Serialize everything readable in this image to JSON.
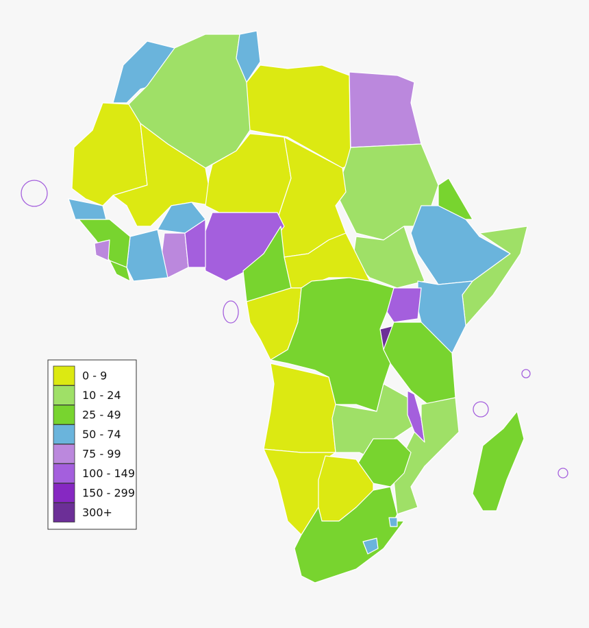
{
  "legend": {
    "items": [
      {
        "label": "0 - 9",
        "color": "#dce912"
      },
      {
        "label": "10 - 24",
        "color": "#9fe067"
      },
      {
        "label": "25 - 49",
        "color": "#78d42f"
      },
      {
        "label": "50 - 74",
        "color": "#6ab4dc"
      },
      {
        "label": "75 - 99",
        "color": "#bb88dd"
      },
      {
        "label": "100 - 149",
        "color": "#a45fdd"
      },
      {
        "label": "150 - 299",
        "color": "#8628c2"
      },
      {
        "label": "300+",
        "color": "#6c2f97"
      }
    ]
  }
}
